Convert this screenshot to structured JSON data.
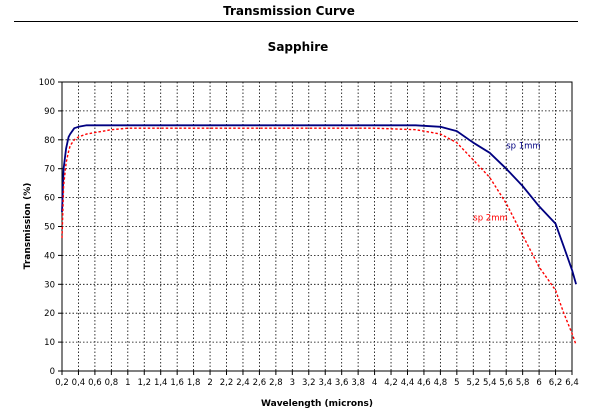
{
  "header": {
    "title": "Transmission Curve"
  },
  "chart_data": {
    "type": "line",
    "title": "Sapphire",
    "xlabel": "Wavelength (microns)",
    "ylabel": "Transmission (%)",
    "xlim": [
      0.2,
      6.4
    ],
    "ylim": [
      0,
      100
    ],
    "grid": true,
    "x_ticks": [
      "0,2",
      "0,4",
      "0,6",
      "0,8",
      "1",
      "1,2",
      "1,4",
      "1,6",
      "1,8",
      "2",
      "2,2",
      "2,4",
      "2,6",
      "2,8",
      "3",
      "3,2",
      "3,4",
      "3,6",
      "3,8",
      "4",
      "4,2",
      "4,4",
      "4,6",
      "4,8",
      "5",
      "5,2",
      "5,4",
      "5,6",
      "5,8",
      "6",
      "6,2",
      "6,4"
    ],
    "y_ticks": [
      "0",
      "10",
      "20",
      "30",
      "40",
      "50",
      "60",
      "70",
      "80",
      "90",
      "100"
    ],
    "series": [
      {
        "name": "sp 1mm",
        "color": "#000080",
        "style": "solid",
        "x": [
          0.2,
          0.22,
          0.25,
          0.28,
          0.3,
          0.35,
          0.4,
          0.5,
          0.6,
          0.8,
          1.0,
          2.0,
          3.0,
          4.0,
          4.5,
          4.8,
          5.0,
          5.2,
          5.4,
          5.6,
          5.8,
          6.0,
          6.2,
          6.3,
          6.4,
          6.45
        ],
        "y": [
          55,
          70,
          77,
          81,
          82,
          84,
          84.5,
          85,
          85,
          85,
          85,
          85,
          85,
          85,
          85,
          84.5,
          83,
          79,
          75.5,
          70,
          64,
          57,
          51,
          43,
          35,
          30
        ]
      },
      {
        "name": "sp 2mm",
        "color": "#ff0000",
        "style": "dotted",
        "x": [
          0.2,
          0.22,
          0.25,
          0.28,
          0.3,
          0.35,
          0.4,
          0.5,
          0.6,
          0.8,
          1.0,
          2.0,
          3.0,
          4.0,
          4.5,
          4.8,
          5.0,
          5.2,
          5.4,
          5.6,
          5.8,
          6.0,
          6.2,
          6.3,
          6.4,
          6.45
        ],
        "y": [
          46,
          64,
          72,
          76,
          78,
          80,
          81,
          82,
          82.5,
          83.5,
          84,
          84,
          84,
          84,
          83.5,
          82,
          79,
          73,
          67,
          58,
          47,
          36,
          28,
          20,
          13,
          9
        ]
      }
    ]
  }
}
